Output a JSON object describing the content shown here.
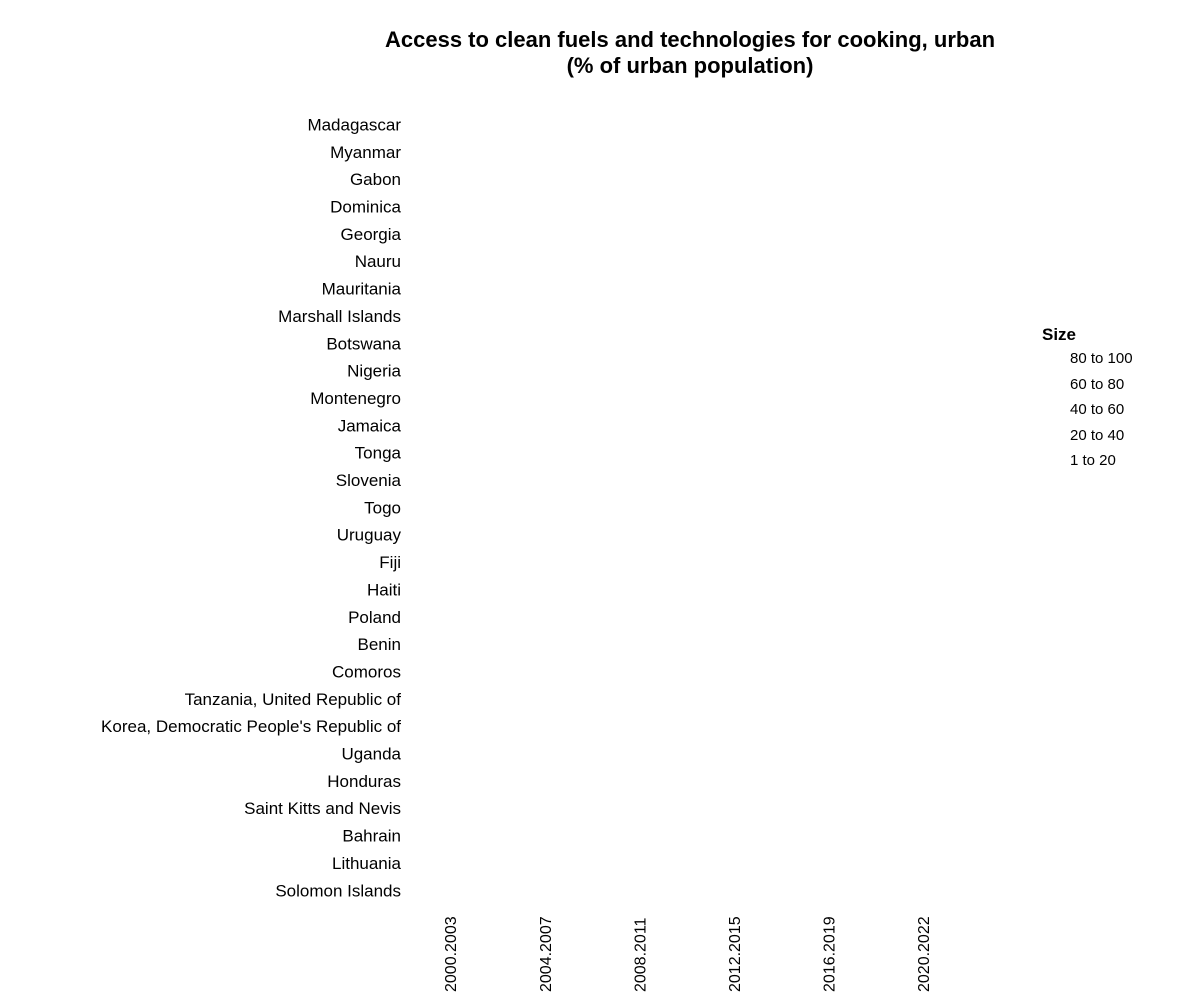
{
  "chart_data": {
    "type": "bubble-grid",
    "title_lines": [
      "Access to clean fuels and technologies for cooking, urban",
      "(% of urban population)"
    ],
    "categories": [
      "Madagascar",
      "Myanmar",
      "Gabon",
      "Dominica",
      "Georgia",
      "Nauru",
      "Mauritania",
      "Marshall Islands",
      "Botswana",
      "Nigeria",
      "Montenegro",
      "Jamaica",
      "Tonga",
      "Slovenia",
      "Togo",
      "Uruguay",
      "Fiji",
      "Haiti",
      "Poland",
      "Benin",
      "Comoros",
      "Tanzania, United Republic of",
      "Korea, Democratic People's Republic of",
      "Uganda",
      "Honduras",
      "Saint Kitts and Nevis",
      "Bahrain",
      "Lithuania",
      "Solomon Islands"
    ],
    "x": [
      "2000.2003",
      "2004.2007",
      "2008.2011",
      "2012.2015",
      "2016.2019",
      "2020.2022"
    ],
    "values": [],
    "legend": {
      "title": "Size",
      "items": [
        "80 to 100",
        "60 to 80",
        "40 to 60",
        "20 to 40",
        "1 to 20"
      ],
      "placement": "right"
    }
  }
}
